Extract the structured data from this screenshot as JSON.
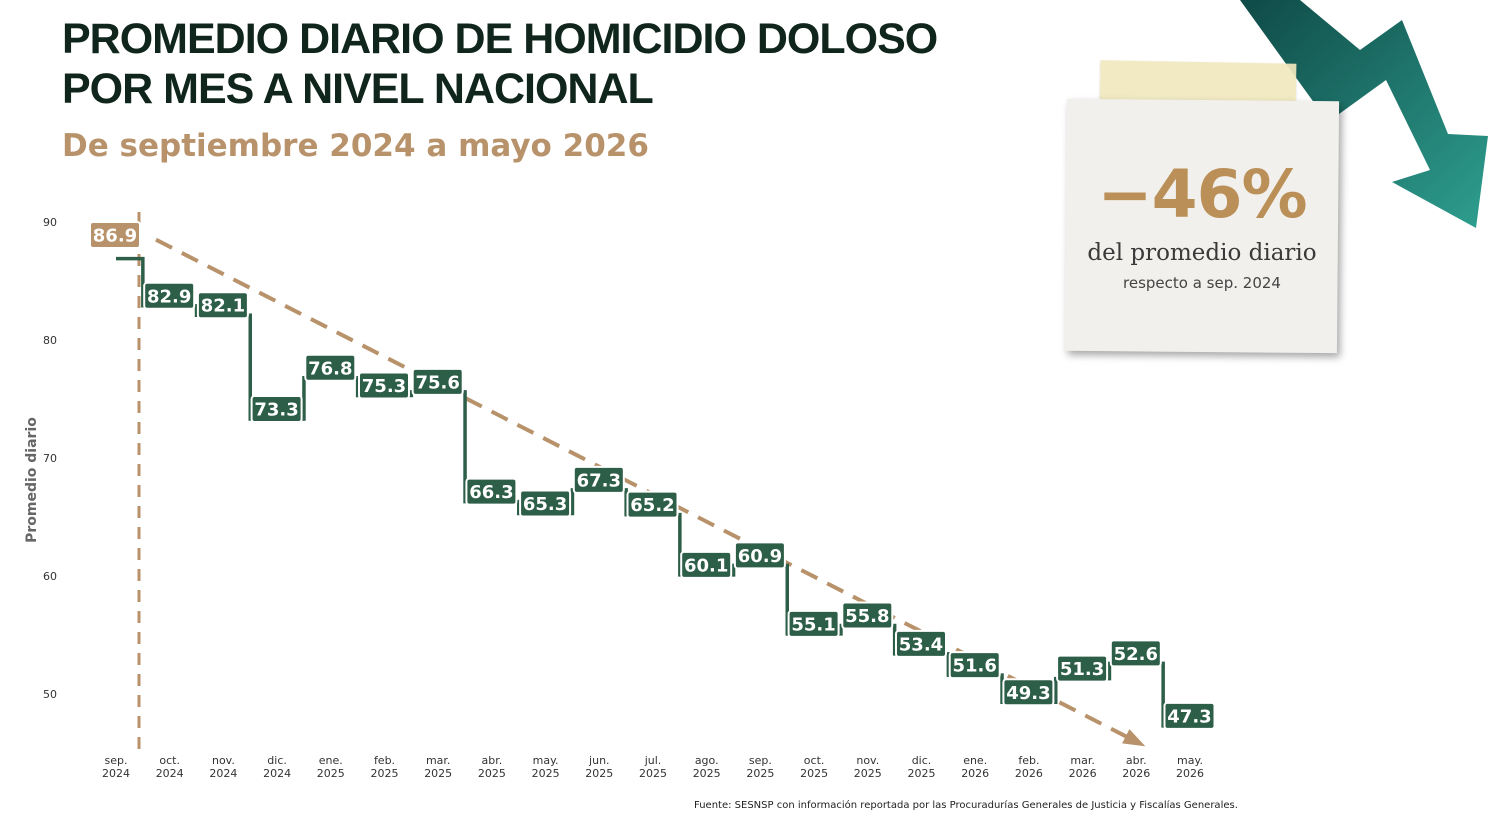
{
  "header": {
    "title_line1": "PROMEDIO DIARIO DE HOMICIDIO DOLOSO",
    "title_line2": "POR MES A NIVEL NACIONAL",
    "subtitle": "De septiembre 2024 a mayo 2026"
  },
  "callout": {
    "value": "−46%",
    "line1": "del promedio diario",
    "line2": "respecto a sep. 2024"
  },
  "source": "Fuente: SESNSP con información reportada por las Procuradurías Generales de Justicia y Fiscalías Generales.",
  "colors": {
    "step": "#2c5e48",
    "label_bg": "#2c5e48",
    "first_label_bg": "#b8926a",
    "trend": "#b8926a",
    "arrow_dark": "#0f4a47",
    "arrow_light": "#2e9f8f"
  },
  "chart_data": {
    "type": "step-line",
    "ylabel": "Promedio diario",
    "ylim": [
      45,
      90
    ],
    "yticks": [
      50,
      60,
      70,
      80,
      90
    ],
    "grid": false,
    "categories": [
      [
        "sep.",
        "2024"
      ],
      [
        "oct.",
        "2024"
      ],
      [
        "nov.",
        "2024"
      ],
      [
        "dic.",
        "2024"
      ],
      [
        "ene.",
        "2025"
      ],
      [
        "feb.",
        "2025"
      ],
      [
        "mar.",
        "2025"
      ],
      [
        "abr.",
        "2025"
      ],
      [
        "may.",
        "2025"
      ],
      [
        "jun.",
        "2025"
      ],
      [
        "jul.",
        "2025"
      ],
      [
        "ago.",
        "2025"
      ],
      [
        "sep.",
        "2025"
      ],
      [
        "oct.",
        "2025"
      ],
      [
        "nov.",
        "2025"
      ],
      [
        "dic.",
        "2025"
      ],
      [
        "ene.",
        "2026"
      ],
      [
        "feb.",
        "2026"
      ],
      [
        "mar.",
        "2026"
      ],
      [
        "abr.",
        "2026"
      ],
      [
        "may.",
        "2026"
      ]
    ],
    "values": [
      86.9,
      82.9,
      82.1,
      73.3,
      76.8,
      75.3,
      75.6,
      66.3,
      65.3,
      67.3,
      65.2,
      60.1,
      60.9,
      55.1,
      55.8,
      53.4,
      51.6,
      49.3,
      51.3,
      52.6,
      47.3
    ],
    "value_labels": [
      "86.9",
      "82.9",
      "82.1",
      "73.3",
      "76.8",
      "75.3",
      "75.6",
      "66.3",
      "65.3",
      "67.3",
      "65.2",
      "60.1",
      "60.9",
      "55.1",
      "55.8",
      "53.4",
      "51.6",
      "49.3",
      "51.3",
      "52.6",
      "47.3"
    ],
    "trend": {
      "from": 88.5,
      "to": 45.8
    },
    "reference_line_at": 0
  }
}
